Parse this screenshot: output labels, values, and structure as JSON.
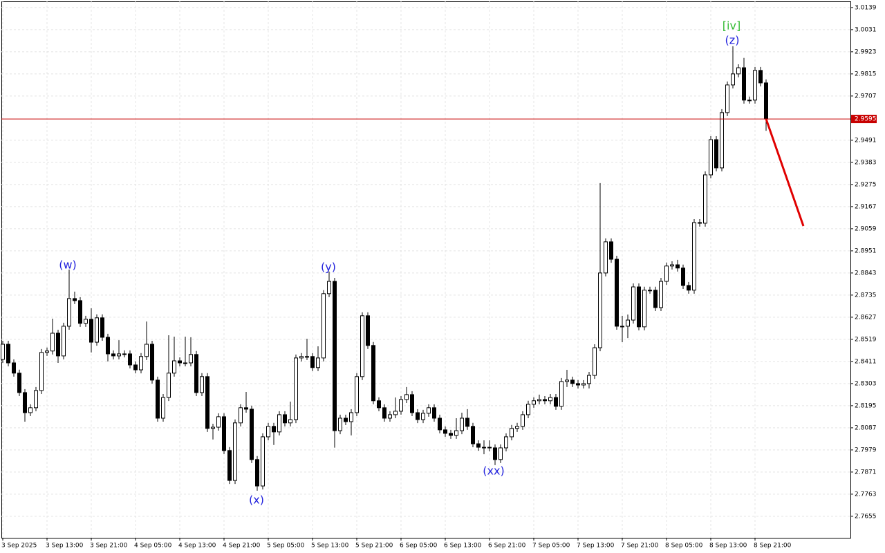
{
  "chart_data": {
    "type": "candlestick",
    "categories": [
      "3 Sep 2025",
      null,
      null,
      null,
      null,
      null,
      null,
      null,
      "3 Sep 13:00",
      null,
      null,
      null,
      null,
      null,
      null,
      null,
      "3 Sep 21:00",
      null,
      null,
      null,
      null,
      null,
      null,
      null,
      "4 Sep 05:00",
      null,
      null,
      null,
      null,
      null,
      null,
      null,
      "4 Sep 13:00",
      null,
      null,
      null,
      null,
      null,
      null,
      null,
      "4 Sep 21:00",
      null,
      null,
      null,
      null,
      null,
      null,
      null,
      "5 Sep 05:00",
      null,
      null,
      null,
      null,
      null,
      null,
      null,
      "5 Sep 13:00",
      null,
      null,
      null,
      null,
      null,
      null,
      null,
      "5 Sep 21:00",
      null,
      null,
      null,
      null,
      null,
      null,
      null,
      "6 Sep 05:00",
      null,
      null,
      null,
      null,
      null,
      null,
      null,
      "6 Sep 13:00",
      null,
      null,
      null,
      null,
      null,
      null,
      null,
      "6 Sep 21:00",
      null,
      null,
      null,
      null,
      null,
      null,
      null,
      "7 Sep 05:00",
      null,
      null,
      null,
      null,
      null,
      null,
      null,
      "7 Sep 13:00",
      null,
      null,
      null,
      null,
      null,
      null,
      null,
      "7 Sep 21:00",
      null,
      null,
      null,
      null,
      null,
      null,
      null,
      "8 Sep 05:00",
      null,
      null,
      null,
      null,
      null,
      null,
      null,
      "8 Sep 13:00",
      null,
      null,
      null,
      null,
      null,
      null,
      null,
      "8 Sep 21:00",
      null,
      null
    ],
    "open": [
      2.8421,
      2.8495,
      2.8404,
      2.8354,
      2.8259,
      2.8161,
      2.8185,
      2.8269,
      2.8455,
      2.8462,
      2.8549,
      2.8438,
      2.8583,
      2.8718,
      2.8708,
      2.8597,
      2.8617,
      2.8505,
      2.8624,
      2.8529,
      2.8448,
      2.8438,
      2.8448,
      2.8448,
      2.8394,
      2.837,
      2.8435,
      2.8495,
      2.832,
      2.8134,
      2.8235,
      2.8354,
      2.8414,
      2.8404,
      2.8404,
      2.8445,
      2.8259,
      2.8337,
      2.8084,
      2.809,
      2.8141,
      2.7976,
      2.783,
      2.8111,
      2.8185,
      2.8178,
      2.7932,
      2.7803,
      2.8043,
      2.8094,
      2.8067,
      2.8151,
      2.8111,
      2.8127,
      2.8428,
      2.8435,
      2.8435,
      2.8381,
      2.8428,
      2.8742,
      2.8802,
      2.8073,
      2.8134,
      2.8117,
      2.8161,
      2.8337,
      2.8634,
      2.8489,
      2.8219,
      2.8185,
      2.8134,
      2.8151,
      2.8168,
      2.8225,
      2.8249,
      2.8161,
      2.8127,
      2.8158,
      2.8185,
      2.8134,
      2.8077,
      2.806,
      2.805,
      2.8073,
      2.8134,
      2.8094,
      2.8009,
      2.7992,
      2.7992,
      2.7989,
      2.7932,
      2.7989,
      2.8043,
      2.8084,
      2.8094,
      2.8151,
      2.8202,
      2.8219,
      2.8225,
      2.8219,
      2.8235,
      2.8192,
      2.8313,
      2.832,
      2.8303,
      2.8296,
      2.8303,
      2.8343,
      2.8478,
      2.8843,
      2.8995,
      2.891,
      2.8583,
      2.8583,
      2.8613,
      2.8775,
      2.858,
      2.8759,
      2.8759,
      2.8674,
      2.8802,
      2.8877,
      2.8883,
      2.8867,
      2.8782,
      2.8759,
      2.9089,
      2.9086,
      2.9322,
      2.9494,
      2.9356,
      2.9626,
      2.9761,
      2.9815,
      2.9845,
      2.9687,
      2.9687,
      2.9832,
      2.9771
    ],
    "high": [
      2.8512,
      2.8512,
      2.8421,
      2.8371,
      2.8276,
      2.8202,
      2.8286,
      2.8472,
      2.8479,
      2.862,
      2.8566,
      2.86,
      2.886,
      2.8752,
      2.8725,
      2.8634,
      2.8671,
      2.8641,
      2.8641,
      2.8546,
      2.8465,
      2.8515,
      2.8465,
      2.8465,
      2.8411,
      2.8452,
      2.8606,
      2.8512,
      2.8337,
      2.8252,
      2.8539,
      2.8532,
      2.8431,
      2.8532,
      2.8529,
      2.8462,
      2.8354,
      2.8354,
      2.8107,
      2.8158,
      2.8158,
      2.7993,
      2.8128,
      2.8202,
      2.8262,
      2.8195,
      2.7949,
      2.806,
      2.8111,
      2.8111,
      2.8168,
      2.8168,
      2.8215,
      2.8445,
      2.8452,
      2.8522,
      2.8452,
      2.8485,
      2.8759,
      2.885,
      2.8819,
      2.8151,
      2.8151,
      2.8178,
      2.8354,
      2.8651,
      2.8651,
      2.8506,
      2.8236,
      2.8202,
      2.8168,
      2.8235,
      2.8242,
      2.8286,
      2.8266,
      2.8178,
      2.8175,
      2.8202,
      2.8202,
      2.8151,
      2.8094,
      2.8077,
      2.8134,
      2.8161,
      2.8178,
      2.8111,
      2.8026,
      2.8026,
      2.8026,
      2.8006,
      2.8006,
      2.806,
      2.8101,
      2.8111,
      2.8168,
      2.8219,
      2.8236,
      2.8249,
      2.8242,
      2.8252,
      2.8252,
      2.833,
      2.837,
      2.8337,
      2.832,
      2.832,
      2.836,
      2.8495,
      2.9282,
      2.9012,
      2.9012,
      2.8927,
      2.8634,
      2.864,
      2.8792,
      2.8792,
      2.8776,
      2.8776,
      2.8776,
      2.8819,
      2.8894,
      2.89,
      2.8907,
      2.8884,
      2.8799,
      2.9106,
      2.9106,
      2.9339,
      2.9511,
      2.9511,
      2.9643,
      2.9778,
      2.995,
      2.9862,
      2.9893,
      2.9704,
      2.9849,
      2.9849,
      2.9788
    ],
    "low": [
      2.8404,
      2.8387,
      2.8337,
      2.8242,
      2.8117,
      2.8144,
      2.8168,
      2.8252,
      2.8438,
      2.8445,
      2.8404,
      2.8421,
      2.8566,
      2.8691,
      2.858,
      2.858,
      2.8455,
      2.8488,
      2.8512,
      2.8411,
      2.8421,
      2.8421,
      2.8431,
      2.8377,
      2.8353,
      2.8353,
      2.8418,
      2.8303,
      2.8117,
      2.8117,
      2.8218,
      2.8337,
      2.8387,
      2.8387,
      2.8387,
      2.8242,
      2.8242,
      2.8067,
      2.803,
      2.8073,
      2.7959,
      2.7813,
      2.7813,
      2.8094,
      2.8161,
      2.7915,
      2.778,
      2.7786,
      2.8026,
      2.8003,
      2.805,
      2.8094,
      2.8094,
      2.811,
      2.8411,
      2.8418,
      2.8364,
      2.8364,
      2.8411,
      2.8725,
      2.799,
      2.8056,
      2.81,
      2.805,
      2.8144,
      2.832,
      2.8472,
      2.8202,
      2.8168,
      2.8117,
      2.8117,
      2.8134,
      2.8151,
      2.8208,
      2.8144,
      2.811,
      2.811,
      2.8141,
      2.8117,
      2.806,
      2.8043,
      2.8033,
      2.8033,
      2.8056,
      2.8077,
      2.7992,
      2.7975,
      2.7958,
      2.7972,
      2.7905,
      2.7915,
      2.7972,
      2.8026,
      2.8067,
      2.8077,
      2.8134,
      2.8185,
      2.8202,
      2.8202,
      2.8202,
      2.8175,
      2.8175,
      2.8286,
      2.8286,
      2.8279,
      2.8279,
      2.8279,
      2.8326,
      2.8461,
      2.8826,
      2.8893,
      2.8566,
      2.8505,
      2.8525,
      2.8596,
      2.8563,
      2.8563,
      2.8742,
      2.8657,
      2.8657,
      2.8785,
      2.886,
      2.885,
      2.8765,
      2.8742,
      2.8742,
      2.9069,
      2.9069,
      2.9305,
      2.9339,
      2.9339,
      2.9609,
      2.9744,
      2.9798,
      2.967,
      2.967,
      2.967,
      2.9754,
      2.9537
    ],
    "close": [
      2.8495,
      2.8404,
      2.8354,
      2.8259,
      2.8161,
      2.8185,
      2.8269,
      2.8455,
      2.8462,
      2.8549,
      2.8438,
      2.8583,
      2.8718,
      2.8708,
      2.8597,
      2.8617,
      2.8505,
      2.8624,
      2.8529,
      2.8448,
      2.8438,
      2.8448,
      2.8448,
      2.8394,
      2.837,
      2.8435,
      2.8495,
      2.832,
      2.8134,
      2.8235,
      2.8354,
      2.8414,
      2.8404,
      2.8404,
      2.8445,
      2.8259,
      2.8337,
      2.8084,
      2.809,
      2.8141,
      2.7976,
      2.783,
      2.8111,
      2.8185,
      2.8178,
      2.7932,
      2.7803,
      2.8043,
      2.8094,
      2.8067,
      2.8151,
      2.8111,
      2.8127,
      2.8428,
      2.8435,
      2.8435,
      2.8381,
      2.8428,
      2.8742,
      2.8802,
      2.8073,
      2.8134,
      2.8117,
      2.8161,
      2.8337,
      2.8634,
      2.8489,
      2.8219,
      2.8185,
      2.8134,
      2.8151,
      2.8168,
      2.8225,
      2.8249,
      2.8161,
      2.8127,
      2.8158,
      2.8185,
      2.8134,
      2.8077,
      2.806,
      2.805,
      2.8073,
      2.8134,
      2.8094,
      2.8009,
      2.7992,
      2.7992,
      2.7989,
      2.7932,
      2.7989,
      2.8043,
      2.8084,
      2.8094,
      2.8151,
      2.8202,
      2.8219,
      2.8225,
      2.8219,
      2.8235,
      2.8192,
      2.8313,
      2.832,
      2.8303,
      2.8296,
      2.8303,
      2.8343,
      2.8478,
      2.8843,
      2.8995,
      2.891,
      2.8583,
      2.8583,
      2.8613,
      2.8775,
      2.858,
      2.8759,
      2.8759,
      2.8674,
      2.8802,
      2.8877,
      2.8883,
      2.8867,
      2.8782,
      2.8759,
      2.9089,
      2.9086,
      2.9322,
      2.9494,
      2.9356,
      2.9626,
      2.9761,
      2.9815,
      2.9845,
      2.9687,
      2.9687,
      2.9832,
      2.9771,
      2.9595
    ],
    "color": "#000000",
    "up_color": "#ffffff",
    "ylim": [
      2.755,
      3.0169
    ],
    "yticks": [
      3.0139,
      3.0031,
      2.9923,
      2.9815,
      2.9707,
      2.9491,
      2.9383,
      2.9275,
      2.9167,
      2.9059,
      2.8951,
      2.8843,
      2.8735,
      2.8627,
      2.8519,
      2.8411,
      2.8303,
      2.8195,
      2.8087,
      2.7979,
      2.7871,
      2.7763,
      2.7655
    ],
    "grid": true,
    "current_price": 2.9595,
    "current_price_color": "#c80000",
    "forecast": [
      2.9595,
      2.9072
    ],
    "forecast_color": "#e00000",
    "annotations": [
      {
        "text": "(w)",
        "color": "#2222dd"
      },
      {
        "text": "(x)",
        "color": "#2222dd"
      },
      {
        "text": "(y)",
        "color": "#2222dd"
      },
      {
        "text": "(xx)",
        "color": "#2222dd"
      },
      {
        "text": "(z)",
        "color": "#2222dd"
      },
      {
        "text": "[iv]",
        "color": "#33bb33"
      }
    ]
  }
}
